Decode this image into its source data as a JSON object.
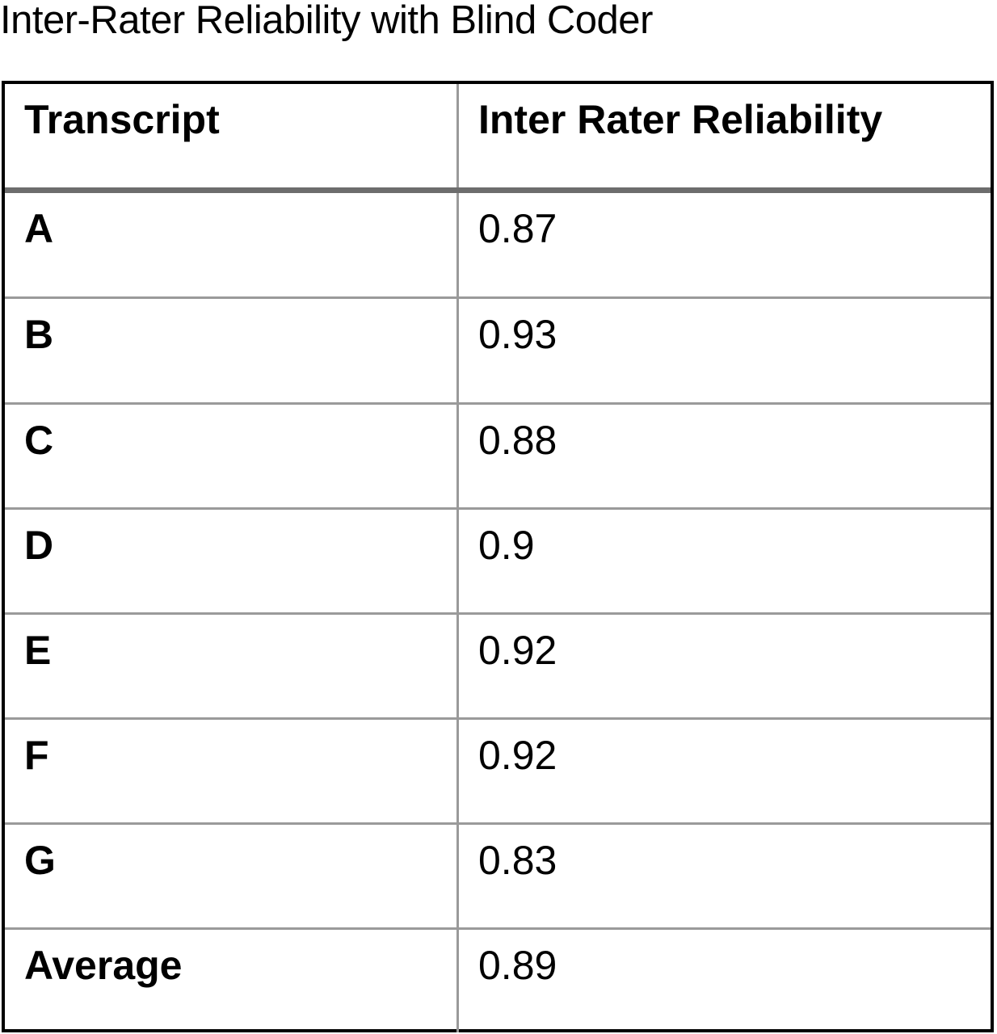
{
  "title": "Inter-Rater Reliability with Blind Coder",
  "table": {
    "headers": [
      "Transcript",
      "Inter Rater Reliability"
    ],
    "rows": [
      {
        "transcript": "A",
        "reliability": "0.87"
      },
      {
        "transcript": "B",
        "reliability": "0.93"
      },
      {
        "transcript": "C",
        "reliability": "0.88"
      },
      {
        "transcript": "D",
        "reliability": "0.9"
      },
      {
        "transcript": "E",
        "reliability": "0.92"
      },
      {
        "transcript": "F",
        "reliability": "0.92"
      },
      {
        "transcript": "G",
        "reliability": "0.83"
      },
      {
        "transcript": "Average",
        "reliability": "0.89"
      }
    ]
  }
}
